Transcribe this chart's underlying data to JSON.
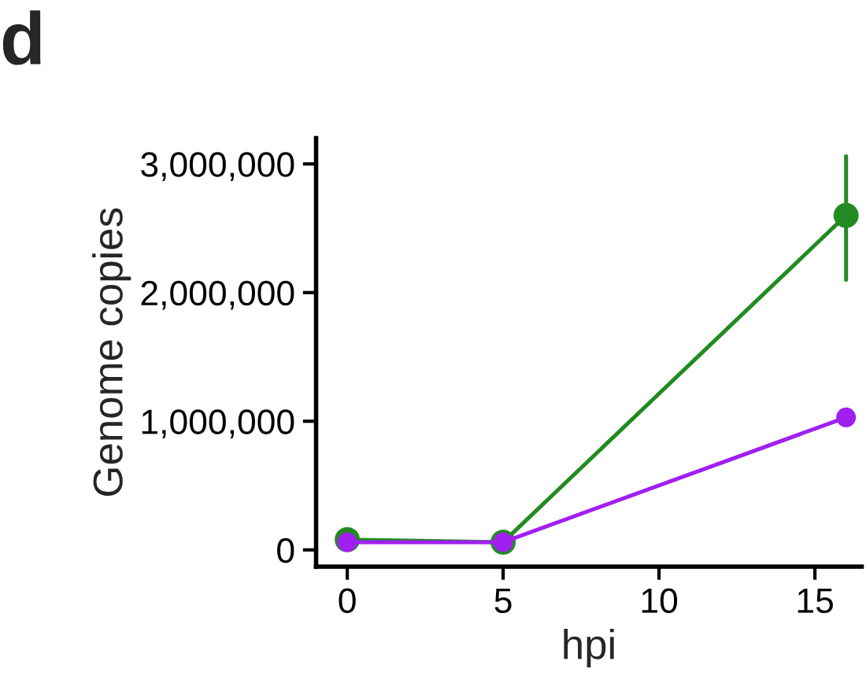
{
  "chart_data": {
    "type": "line",
    "title": "d",
    "xlabel": "hpi",
    "ylabel": "Genome copies",
    "x": [
      0,
      5,
      16
    ],
    "series": [
      {
        "color": "#228b22",
        "values": [
          80000,
          60000,
          2600000
        ],
        "errors": [
          null,
          null,
          [
            2100000,
            3060000
          ]
        ]
      },
      {
        "color": "#a020f0",
        "values": [
          60000,
          60000,
          1030000
        ],
        "errors": [
          null,
          null,
          60000
        ]
      }
    ],
    "xlim": [
      -1,
      16.5
    ],
    "xticks": [
      0,
      5,
      10,
      15
    ],
    "ylim": [
      -130000,
      3200000
    ],
    "yticks": [
      {
        "value": 0,
        "label": "0"
      },
      {
        "value": 1000000,
        "label": "1,000,000"
      },
      {
        "value": 2000000,
        "label": "2,000,000"
      },
      {
        "value": 3000000,
        "label": "3,000,000"
      }
    ],
    "marker": "circle",
    "grid": false,
    "legend": false
  }
}
